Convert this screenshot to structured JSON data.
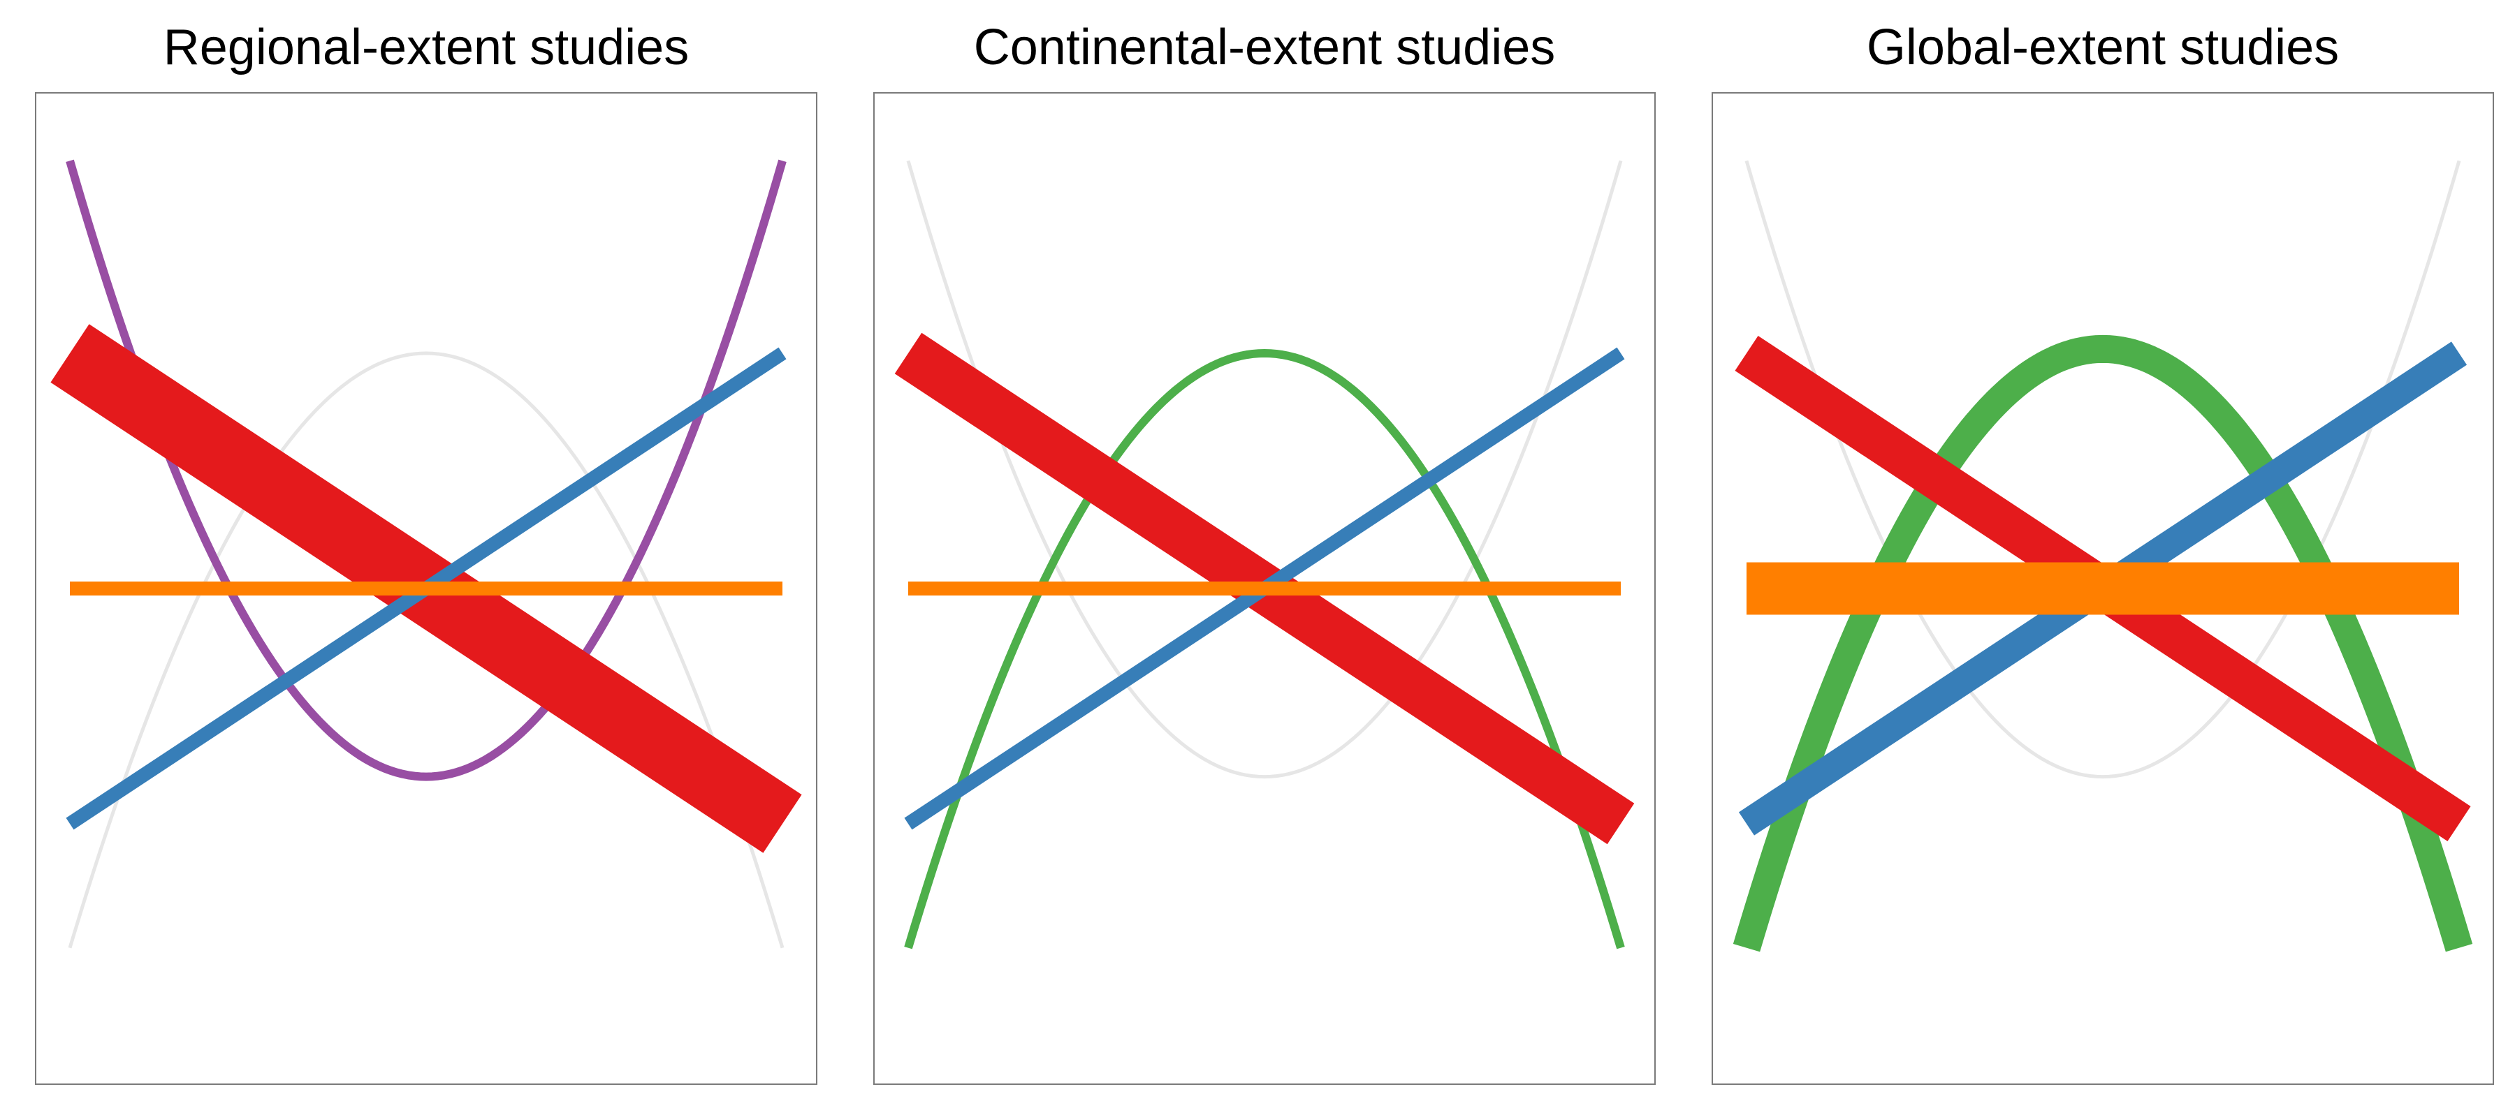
{
  "chart_data": [
    {
      "type": "line",
      "title": "Regional-extent studies",
      "xlim": [
        -1,
        1
      ],
      "ylim": [
        -1.1,
        1.1
      ],
      "grid": false,
      "legend": "none",
      "series": [
        {
          "shape": "decreasing-line",
          "color": "#E41A1C",
          "thickness": 1.0,
          "x": [
            -1,
            1
          ],
          "y": [
            0.55,
            -0.55
          ]
        },
        {
          "shape": "increasing-line",
          "color": "#377EB8",
          "thickness": 0.2,
          "x": [
            -1,
            1
          ],
          "y": [
            -0.55,
            0.55
          ]
        },
        {
          "shape": "flat-line",
          "color": "#FF7F00",
          "thickness": 0.2,
          "x": [
            -1,
            1
          ],
          "y": [
            0,
            0
          ]
        },
        {
          "shape": "u-curve",
          "color": "#984EA3",
          "thickness": 0.12,
          "x": [
            -1,
            0,
            1
          ],
          "y": [
            1,
            -0.44,
            1
          ]
        },
        {
          "shape": "hump-curve",
          "color": "#E6E6E6",
          "thickness": 0.05,
          "x": [
            -1,
            0,
            1
          ],
          "y": [
            -0.84,
            0.55,
            -0.84
          ]
        }
      ]
    },
    {
      "type": "line",
      "title": "Continental-extent studies",
      "xlim": [
        -1,
        1
      ],
      "ylim": [
        -1.1,
        1.1
      ],
      "grid": false,
      "legend": "none",
      "series": [
        {
          "shape": "decreasing-line",
          "color": "#E41A1C",
          "thickness": 0.7,
          "x": [
            -1,
            1
          ],
          "y": [
            0.55,
            -0.55
          ]
        },
        {
          "shape": "increasing-line",
          "color": "#377EB8",
          "thickness": 0.2,
          "x": [
            -1,
            1
          ],
          "y": [
            -0.55,
            0.55
          ]
        },
        {
          "shape": "flat-line",
          "color": "#FF7F00",
          "thickness": 0.2,
          "x": [
            -1,
            1
          ],
          "y": [
            0,
            0
          ]
        },
        {
          "shape": "hump-curve",
          "color": "#4DAF4A",
          "thickness": 0.12,
          "x": [
            -1,
            0,
            1
          ],
          "y": [
            -0.84,
            0.55,
            -0.84
          ]
        },
        {
          "shape": "u-curve",
          "color": "#E6E6E6",
          "thickness": 0.05,
          "x": [
            -1,
            0,
            1
          ],
          "y": [
            1,
            -0.44,
            1
          ]
        }
      ]
    },
    {
      "type": "line",
      "title": "Global-extent studies",
      "xlim": [
        -1,
        1
      ],
      "ylim": [
        -1.1,
        1.1
      ],
      "grid": false,
      "legend": "none",
      "series": [
        {
          "shape": "decreasing-line",
          "color": "#E41A1C",
          "thickness": 0.6,
          "x": [
            -1,
            1
          ],
          "y": [
            0.55,
            -0.55
          ]
        },
        {
          "shape": "increasing-line",
          "color": "#377EB8",
          "thickness": 0.4,
          "x": [
            -1,
            1
          ],
          "y": [
            -0.55,
            0.55
          ]
        },
        {
          "shape": "flat-line",
          "color": "#FF7F00",
          "thickness": 0.75,
          "x": [
            -1,
            1
          ],
          "y": [
            0,
            0
          ]
        },
        {
          "shape": "hump-curve",
          "color": "#4DAF4A",
          "thickness": 0.4,
          "x": [
            -1,
            0,
            1
          ],
          "y": [
            -0.84,
            0.56,
            -0.84
          ]
        },
        {
          "shape": "u-curve",
          "color": "#E6E6E6",
          "thickness": 0.05,
          "x": [
            -1,
            0,
            1
          ],
          "y": [
            1,
            -0.44,
            1
          ]
        }
      ]
    }
  ]
}
